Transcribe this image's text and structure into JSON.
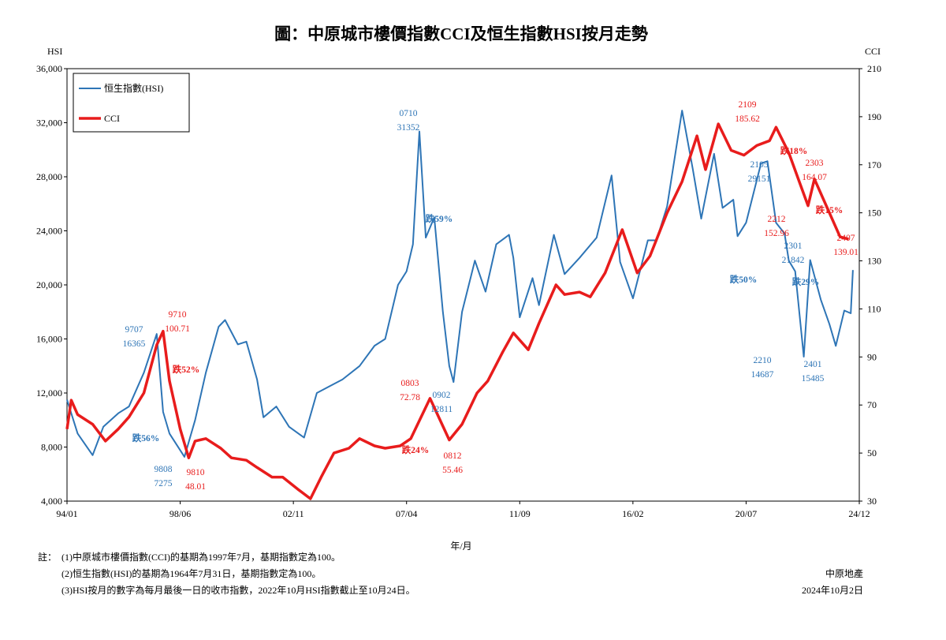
{
  "chart_data": {
    "type": "line",
    "title": "圖：中原城市樓價指數CCI及恒生指數HSI按月走勢",
    "y_axis_label": "HSI",
    "y2_axis_label": "CCI",
    "x_axis_label": "年/月",
    "xlim": [
      "94/01",
      "24/12"
    ],
    "xticks": [
      "94/01",
      "98/06",
      "02/11",
      "07/04",
      "11/09",
      "16/02",
      "20/07",
      "24/12"
    ],
    "ylim": [
      4000,
      36000
    ],
    "yticks": [
      {
        "value": 4000,
        "label": "4,000"
      },
      {
        "value": 8000,
        "label": "8,000"
      },
      {
        "value": 12000,
        "label": "12,000"
      },
      {
        "value": 16000,
        "label": "16,000"
      },
      {
        "value": 20000,
        "label": "20,000"
      },
      {
        "value": 24000,
        "label": "24,000"
      },
      {
        "value": 28000,
        "label": "28,000"
      },
      {
        "value": 32000,
        "label": "32,000"
      },
      {
        "value": 36000,
        "label": "36,000"
      }
    ],
    "y2lim": [
      30,
      210
    ],
    "y2ticks": [
      30,
      50,
      70,
      90,
      110,
      130,
      150,
      170,
      190,
      210
    ],
    "legend": "upper left",
    "series": [
      {
        "name": "恒生指數(HSI)",
        "color": "#2e75b6",
        "x": [
          "94/01",
          "94/06",
          "95/01",
          "95/06",
          "96/01",
          "96/06",
          "97/01",
          "97/07",
          "97/10",
          "98/01",
          "98/08",
          "99/01",
          "99/06",
          "99/12",
          "00/03",
          "00/09",
          "01/01",
          "01/06",
          "01/09",
          "02/03",
          "02/09",
          "03/04",
          "03/10",
          "04/04",
          "04/10",
          "05/06",
          "06/01",
          "06/06",
          "06/12",
          "07/04",
          "07/07",
          "07/10",
          "08/01",
          "08/05",
          "08/09",
          "08/12",
          "09/02",
          "09/06",
          "09/12",
          "10/05",
          "10/10",
          "11/04",
          "11/06",
          "11/09",
          "12/03",
          "12/06",
          "13/01",
          "13/06",
          "14/01",
          "14/09",
          "15/04",
          "15/08",
          "16/02",
          "16/09",
          "17/01",
          "17/06",
          "18/01",
          "18/06",
          "18/10",
          "19/04",
          "19/08",
          "20/01",
          "20/03",
          "20/07",
          "21/02",
          "21/05",
          "21/09",
          "22/01",
          "22/03",
          "22/06",
          "22/10",
          "23/01",
          "23/06",
          "23/10",
          "24/01",
          "24/05",
          "24/08",
          "24/09"
        ],
        "values": [
          11500,
          9000,
          7400,
          9500,
          10500,
          11000,
          13500,
          16365,
          10600,
          9000,
          7275,
          10000,
          13500,
          16900,
          17400,
          15600,
          15800,
          13000,
          10200,
          11000,
          9500,
          8700,
          12000,
          12500,
          13000,
          14000,
          15500,
          16000,
          20000,
          21000,
          23000,
          31352,
          23500,
          25000,
          18000,
          14000,
          12811,
          18000,
          21800,
          19500,
          23000,
          23700,
          22000,
          17600,
          20500,
          18500,
          23700,
          20800,
          22000,
          23500,
          28100,
          21700,
          19000,
          23300,
          23300,
          25800,
          32900,
          28600,
          24900,
          29700,
          25700,
          26300,
          23600,
          24600,
          29000,
          29151,
          24600,
          23800,
          21800,
          21000,
          14687,
          21842,
          18900,
          17100,
          15485,
          18100,
          17900,
          21100
        ]
      },
      {
        "name": "CCI",
        "color": "#e81c1c",
        "axis": "y2",
        "x": [
          "94/01",
          "94/03",
          "94/06",
          "95/01",
          "95/07",
          "96/01",
          "96/06",
          "97/01",
          "97/07",
          "97/10",
          "98/01",
          "98/06",
          "98/10",
          "99/01",
          "99/06",
          "00/01",
          "00/06",
          "01/01",
          "01/06",
          "02/01",
          "02/06",
          "03/01",
          "03/07",
          "03/12",
          "04/06",
          "05/01",
          "05/06",
          "06/01",
          "06/06",
          "07/01",
          "07/06",
          "08/03",
          "08/12",
          "09/06",
          "10/01",
          "10/06",
          "11/01",
          "11/06",
          "12/01",
          "12/06",
          "13/02",
          "13/06",
          "14/01",
          "14/06",
          "15/01",
          "15/09",
          "16/04",
          "16/10",
          "17/06",
          "18/01",
          "18/08",
          "18/12",
          "19/06",
          "19/12",
          "20/06",
          "20/12",
          "21/06",
          "21/09",
          "22/03",
          "22/12",
          "23/03",
          "23/09",
          "24/03",
          "24/07"
        ],
        "values": [
          60,
          72,
          66,
          62,
          55,
          60,
          65,
          75,
          95,
          100.71,
          80,
          60,
          48.01,
          55,
          56,
          52,
          48,
          47,
          44,
          40,
          40,
          35,
          31,
          40,
          50,
          52,
          56,
          53,
          52,
          53,
          56,
          72.78,
          55.46,
          62,
          75,
          80,
          92,
          100,
          93,
          104,
          120,
          116,
          117,
          115,
          125,
          143,
          125,
          132,
          150,
          163,
          182,
          168,
          187,
          176,
          174,
          178,
          180,
          185.62,
          175,
          152.96,
          164.07,
          152,
          140,
          139.01
        ]
      }
    ],
    "annotations": [
      {
        "lines": [
          "9707",
          "16365"
        ],
        "color": "#2e75b6"
      },
      {
        "lines": [
          "9710",
          "100.71"
        ],
        "color": "#e81c1c"
      },
      {
        "lines": [
          "跌52%"
        ],
        "color": "#e81c1c"
      },
      {
        "lines": [
          "跌56%"
        ],
        "color": "#2e75b6"
      },
      {
        "lines": [
          "9808",
          "7275"
        ],
        "color": "#2e75b6"
      },
      {
        "lines": [
          "9810",
          "48.01"
        ],
        "color": "#e81c1c"
      },
      {
        "lines": [
          "0710",
          "31352"
        ],
        "color": "#2e75b6"
      },
      {
        "lines": [
          "跌59%"
        ],
        "color": "#2e75b6"
      },
      {
        "lines": [
          "0803",
          "72.78"
        ],
        "color": "#e81c1c"
      },
      {
        "lines": [
          "跌24%"
        ],
        "color": "#e81c1c"
      },
      {
        "lines": [
          "0902",
          "12811"
        ],
        "color": "#2e75b6"
      },
      {
        "lines": [
          "0812",
          "55.46"
        ],
        "color": "#e81c1c"
      },
      {
        "lines": [
          "2109",
          "185.62"
        ],
        "color": "#e81c1c"
      },
      {
        "lines": [
          "跌18%"
        ],
        "color": "#e81c1c"
      },
      {
        "lines": [
          "2303",
          "164.07"
        ],
        "color": "#e81c1c"
      },
      {
        "lines": [
          "2105",
          "29151"
        ],
        "color": "#2e75b6"
      },
      {
        "lines": [
          "跌15%"
        ],
        "color": "#e81c1c"
      },
      {
        "lines": [
          "2212",
          "152.96"
        ],
        "color": "#e81c1c"
      },
      {
        "lines": [
          "2301",
          "21842"
        ],
        "color": "#2e75b6"
      },
      {
        "lines": [
          "2407",
          "139.01"
        ],
        "color": "#e81c1c"
      },
      {
        "lines": [
          "跌50%"
        ],
        "color": "#2e75b6"
      },
      {
        "lines": [
          "跌29%"
        ],
        "color": "#2e75b6"
      },
      {
        "lines": [
          "2210",
          "14687"
        ],
        "color": "#2e75b6"
      },
      {
        "lines": [
          "2401",
          "15485"
        ],
        "color": "#2e75b6"
      }
    ],
    "notes_label": "註：",
    "notes": [
      "(1)中原城市樓價指數(CCI)的基期為1997年7月，基期指數定為100。",
      "(2)恒生指數(HSI)的基期為1964年7月31日，基期指數定為100。",
      "(3)HSI按月的數字為每月最後一日的收市指數，2022年10月HSI指數截止至10月24日。"
    ],
    "source": "中原地產",
    "date": "2024年10月2日"
  }
}
